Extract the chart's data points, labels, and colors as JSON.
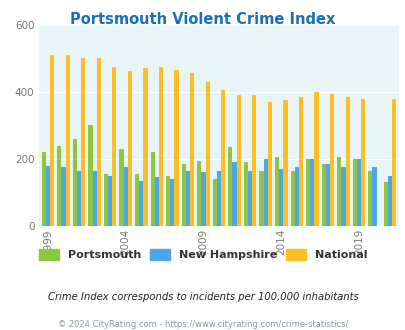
{
  "title": "Portsmouth Violent Crime Index",
  "years": [
    1999,
    2000,
    2001,
    2002,
    2003,
    2004,
    2005,
    2006,
    2007,
    2008,
    2009,
    2010,
    2011,
    2012,
    2013,
    2014,
    2015,
    2016,
    2017,
    2018,
    2019,
    2020,
    2021
  ],
  "portsmouth": [
    220,
    240,
    260,
    300,
    155,
    230,
    155,
    220,
    150,
    185,
    195,
    140,
    235,
    190,
    165,
    205,
    165,
    200,
    185,
    205,
    200,
    165,
    130
  ],
  "new_hampshire": [
    180,
    175,
    165,
    165,
    150,
    175,
    135,
    145,
    140,
    165,
    160,
    165,
    190,
    165,
    200,
    170,
    175,
    200,
    185,
    175,
    200,
    175,
    150
  ],
  "national": [
    510,
    510,
    500,
    500,
    475,
    462,
    470,
    475,
    465,
    455,
    430,
    405,
    390,
    390,
    370,
    375,
    385,
    400,
    395,
    385,
    380,
    0,
    378
  ],
  "color_portsmouth": "#8dc63f",
  "color_nh": "#4da6e8",
  "color_national": "#fbbf24",
  "bg_color": "#e8f4f8",
  "ylim": [
    0,
    600
  ],
  "yticks": [
    0,
    200,
    400,
    600
  ],
  "subtitle": "Crime Index corresponds to incidents per 100,000 inhabitants",
  "footer": "© 2024 CityRating.com - https://www.cityrating.com/crime-statistics/",
  "bar_width": 0.27,
  "xtick_years": [
    1999,
    2004,
    2009,
    2014,
    2019
  ],
  "title_color": "#1a6fbb",
  "subtitle_color": "#222222",
  "footer_color": "#8899aa"
}
